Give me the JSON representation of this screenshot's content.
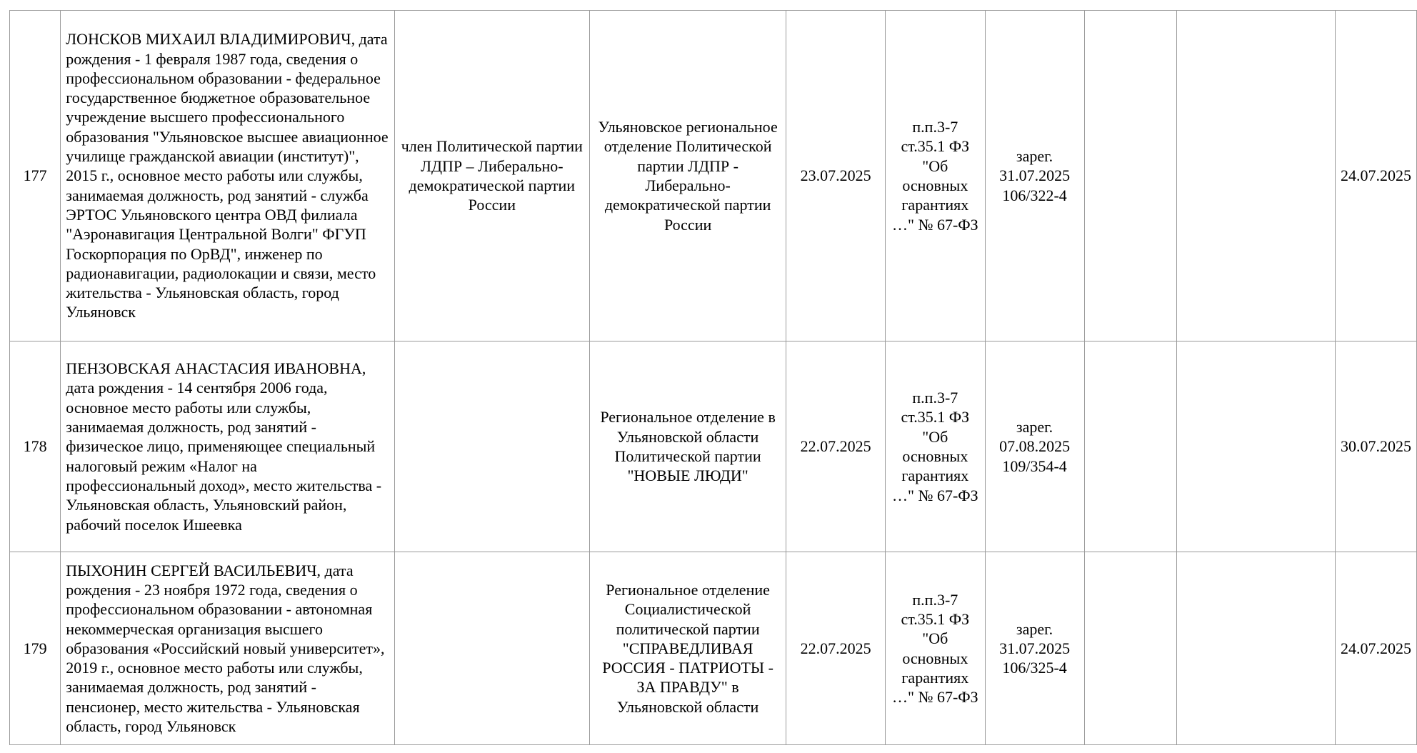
{
  "rows": [
    {
      "num": "177",
      "candidate": "ЛОНСКОВ МИХАИЛ ВЛАДИМИРОВИЧ, дата рождения - 1 февраля 1987 года, сведения о профессиональном образовании - федеральное государственное бюджетное образовательное учреждение высшего профессионального образования \"Ульяновское высшее авиационное училище гражданской авиации (институт)\", 2015 г., основное место работы или службы, занимаемая должность, род занятий - служба ЭРТОС Ульяновского центра ОВД филиала \"Аэронавигация Центральной Волги\" ФГУП Госкорпорация по ОрВД\", инженер по радионавигации, радиолокации и связи, место жительства - Ульяновская область, город Ульяновск",
      "membership": "член Политической партии ЛДПР – Либерально-демократической партии России",
      "nominator": "Ульяновское региональное отделение Политической партии ЛДПР - Либерально-демократической партии России",
      "date": "23.07.2025",
      "basis": "п.п.3-7 ст.35.1 ФЗ \"Об основных гарантиях …\" № 67-ФЗ",
      "status": "зарег. 31.07.2025 106/322-4",
      "col8": "",
      "col9": "",
      "date2": "24.07.2025"
    },
    {
      "num": "178",
      "candidate": "ПЕНЗОВСКАЯ АНАСТАСИЯ ИВАНОВНА, дата рождения - 14 сентября 2006 года, основное место работы или службы, занимаемая должность, род занятий - физическое лицо, применяющее специальный налоговый режим «Налог на профессиональный доход», место жительства - Ульяновская область, Ульяновский район, рабочий поселок Ишеевка",
      "membership": "",
      "nominator": "Региональное отделение в Ульяновской области Политической партии \"НОВЫЕ ЛЮДИ\"",
      "date": "22.07.2025",
      "basis": "п.п.3-7 ст.35.1 ФЗ \"Об основных гарантиях …\" № 67-ФЗ",
      "status": "зарег. 07.08.2025 109/354-4",
      "col8": "",
      "col9": "",
      "date2": "30.07.2025"
    },
    {
      "num": "179",
      "candidate": "ПЫХОНИН СЕРГЕЙ ВАСИЛЬЕВИЧ, дата рождения - 23 ноября 1972 года, сведения о профессиональном образовании - автономная некоммерческая организация высшего образования «Российский новый университет», 2019 г., основное место работы или службы, занимаемая должность, род занятий - пенсионер, место жительства - Ульяновская область, город Ульяновск",
      "membership": "",
      "nominator": "Региональное отделение Социалистической политической партии \"СПРАВЕДЛИВАЯ РОССИЯ - ПАТРИОТЫ - ЗА ПРАВДУ\" в Ульяновской области",
      "date": "22.07.2025",
      "basis": "п.п.3-7 ст.35.1 ФЗ \"Об основных гарантиях …\" № 67-ФЗ",
      "status": "зарег. 31.07.2025 106/325-4",
      "col8": "",
      "col9": "",
      "date2": "24.07.2025"
    }
  ]
}
